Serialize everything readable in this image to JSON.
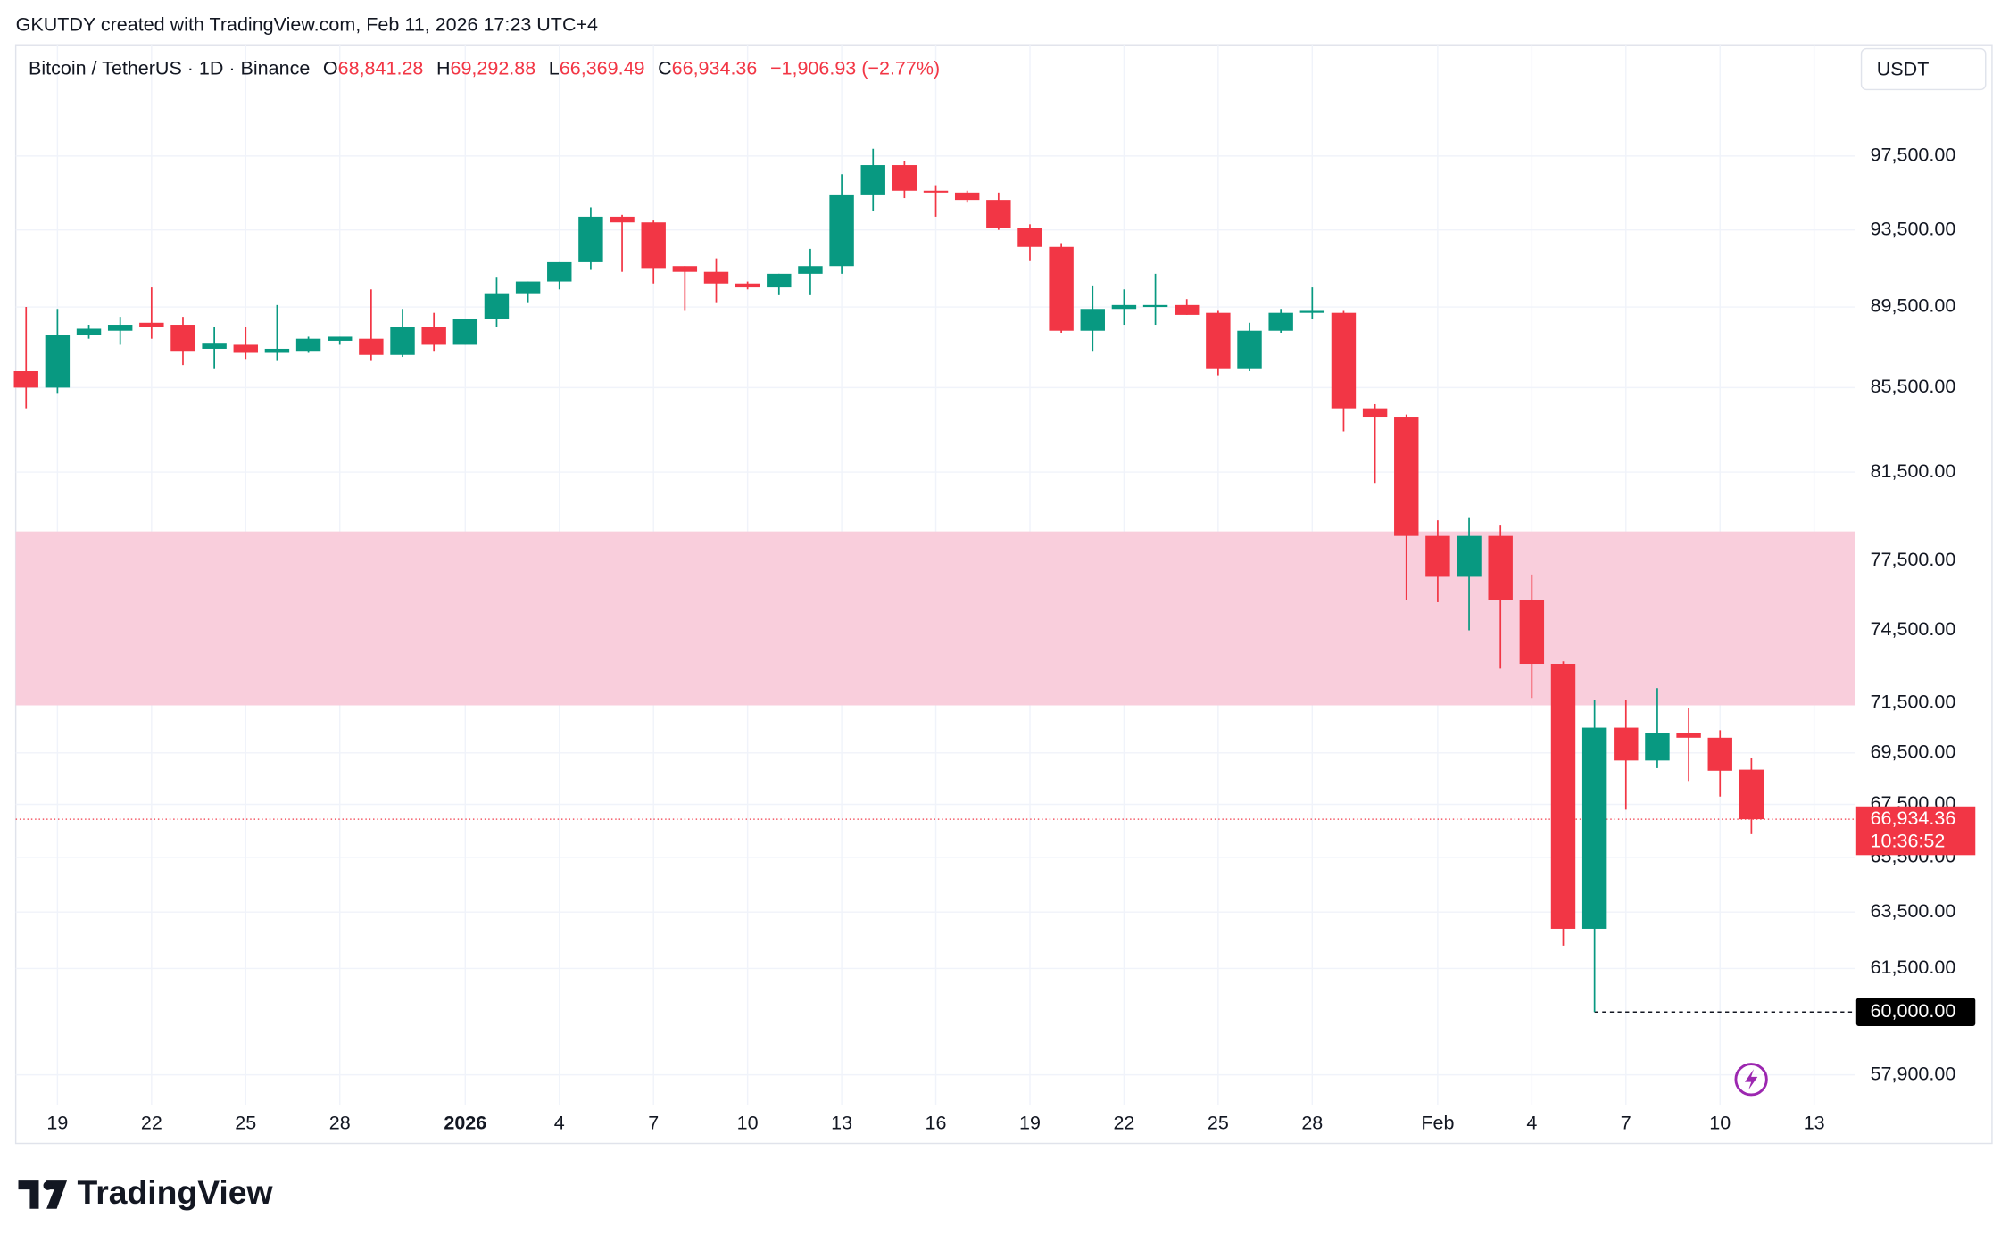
{
  "chart_data": {
    "type": "candlestick",
    "credit": "GKUTDY created with TradingView.com, Feb 11, 2026 17:23 UTC+4",
    "title": "Bitcoin / TetherUS · 1D · Binance",
    "ohlc_labels": {
      "o": "O",
      "open": "68,841.28",
      "h": "H",
      "high": "69,292.88",
      "l": "L",
      "low": "66,369.49",
      "c": "C",
      "close": "66,934.36",
      "change": "−1,906.93 (−2.77%)"
    },
    "currency": "USDT",
    "brand": "TradingView",
    "up_color": "#089981",
    "down_color": "#f23645",
    "log_scale": true,
    "grid": true,
    "open": [
      86300,
      85500,
      88100,
      88300,
      88700,
      88600,
      87400,
      87600,
      87200,
      87300,
      87800,
      87900,
      87100,
      88500,
      87600,
      88900,
      90200,
      90800,
      91800,
      94200,
      93900,
      91600,
      91300,
      90700,
      90500,
      91200,
      91600,
      95400,
      97000,
      95600,
      95500,
      95100,
      93600,
      92600,
      88300,
      89400,
      89500,
      89600,
      89200,
      86400,
      88300,
      89200,
      89200,
      84500,
      84100,
      78600,
      76800,
      78600,
      75800,
      73100,
      62900,
      70500,
      69200,
      70300,
      70100,
      68841.28
    ],
    "high": [
      89500,
      89400,
      88600,
      89000,
      90500,
      89000,
      88500,
      88500,
      89600,
      88000,
      88000,
      90400,
      89400,
      89200,
      88900,
      91000,
      90800,
      91800,
      94700,
      94300,
      94000,
      91600,
      92000,
      90800,
      91200,
      92500,
      96500,
      97900,
      97200,
      95900,
      95600,
      95500,
      93800,
      92800,
      90600,
      90400,
      91200,
      89900,
      89300,
      88700,
      89400,
      90500,
      89300,
      84700,
      84200,
      79300,
      79400,
      79100,
      76900,
      73200,
      71600,
      71600,
      72100,
      71300,
      70400,
      69292.88
    ],
    "low": [
      84500,
      85200,
      87900,
      87600,
      87900,
      86600,
      86400,
      86900,
      86800,
      87200,
      87600,
      86800,
      87000,
      87300,
      87600,
      88500,
      89700,
      90400,
      91400,
      91300,
      90700,
      89300,
      89700,
      90400,
      90100,
      90100,
      91200,
      94500,
      95200,
      94200,
      95000,
      93500,
      91900,
      88200,
      87300,
      88600,
      88600,
      89100,
      86100,
      86300,
      88200,
      88900,
      83400,
      81000,
      75800,
      75700,
      74500,
      72900,
      71700,
      62300,
      60000,
      67300,
      68900,
      68400,
      67800,
      66369.49
    ],
    "close": [
      85500,
      88100,
      88400,
      88600,
      88500,
      87300,
      87700,
      87200,
      87400,
      87900,
      88000,
      87100,
      88500,
      87600,
      88900,
      90200,
      90800,
      91800,
      94200,
      93900,
      91500,
      91300,
      90700,
      90500,
      91200,
      91600,
      95400,
      97000,
      95600,
      95500,
      95100,
      93600,
      92600,
      88300,
      89400,
      89600,
      89600,
      89100,
      86400,
      88300,
      89200,
      89300,
      84500,
      84100,
      78600,
      76800,
      78600,
      75800,
      73100,
      62900,
      70500,
      69200,
      70300,
      70100,
      68800,
      66934.36
    ],
    "last_price_label": "66,934.36",
    "countdown": "10:36:52",
    "low_marker_label": "60,000.00",
    "zone": {
      "from": 71400,
      "to": 78800,
      "color": "#f9cedc"
    },
    "xlim": [
      -0.33,
      58.3
    ],
    "xticks": [
      {
        "value": 1,
        "label": "19"
      },
      {
        "value": 4,
        "label": "22"
      },
      {
        "value": 7,
        "label": "25"
      },
      {
        "value": 10,
        "label": "28"
      },
      {
        "value": 14,
        "label": "2026"
      },
      {
        "value": 17,
        "label": "4"
      },
      {
        "value": 20,
        "label": "7"
      },
      {
        "value": 23,
        "label": "10"
      },
      {
        "value": 26,
        "label": "13"
      },
      {
        "value": 29,
        "label": "16"
      },
      {
        "value": 32,
        "label": "19"
      },
      {
        "value": 35,
        "label": "22"
      },
      {
        "value": 38,
        "label": "25"
      },
      {
        "value": 41,
        "label": "28"
      },
      {
        "value": 45,
        "label": "Feb"
      },
      {
        "value": 48,
        "label": "4"
      },
      {
        "value": 51,
        "label": "7"
      },
      {
        "value": 54,
        "label": "10"
      },
      {
        "value": 57,
        "label": "13"
      }
    ],
    "ylim": [
      57000,
      104000
    ],
    "yticks": [
      {
        "value": 57900,
        "label": "57,900.00"
      },
      {
        "value": 61500,
        "label": "61,500.00"
      },
      {
        "value": 63500,
        "label": "63,500.00"
      },
      {
        "value": 65500,
        "label": "65,500.00"
      },
      {
        "value": 67500,
        "label": "67,500.00"
      },
      {
        "value": 69500,
        "label": "69,500.00"
      },
      {
        "value": 71500,
        "label": "71,500.00"
      },
      {
        "value": 74500,
        "label": "74,500.00"
      },
      {
        "value": 77500,
        "label": "77,500.00"
      },
      {
        "value": 81500,
        "label": "81,500.00"
      },
      {
        "value": 85500,
        "label": "85,500.00"
      },
      {
        "value": 89500,
        "label": "89,500.00"
      },
      {
        "value": 93500,
        "label": "93,500.00"
      },
      {
        "value": 97500,
        "label": "97,500.00"
      }
    ]
  }
}
